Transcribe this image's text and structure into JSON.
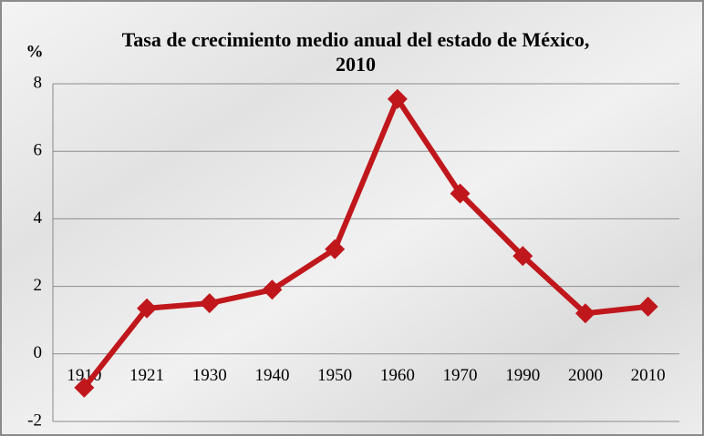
{
  "chart_data": {
    "type": "line",
    "title": "Tasa de crecimiento medio anual del estado de México, 2010",
    "y_label": "%",
    "categories": [
      "1910",
      "1921",
      "1930",
      "1940",
      "1950",
      "1960",
      "1970",
      "1990",
      "2000",
      "2010"
    ],
    "series": [
      {
        "name": "Tasa de crecimiento",
        "color": "#c0171c",
        "values": [
          -1.0,
          1.35,
          1.5,
          1.9,
          3.1,
          7.55,
          4.75,
          2.9,
          1.2,
          1.4
        ]
      }
    ],
    "ylim": [
      -2,
      8
    ],
    "yticks": [
      -2,
      0,
      2,
      4,
      6,
      8
    ],
    "grid": true
  }
}
